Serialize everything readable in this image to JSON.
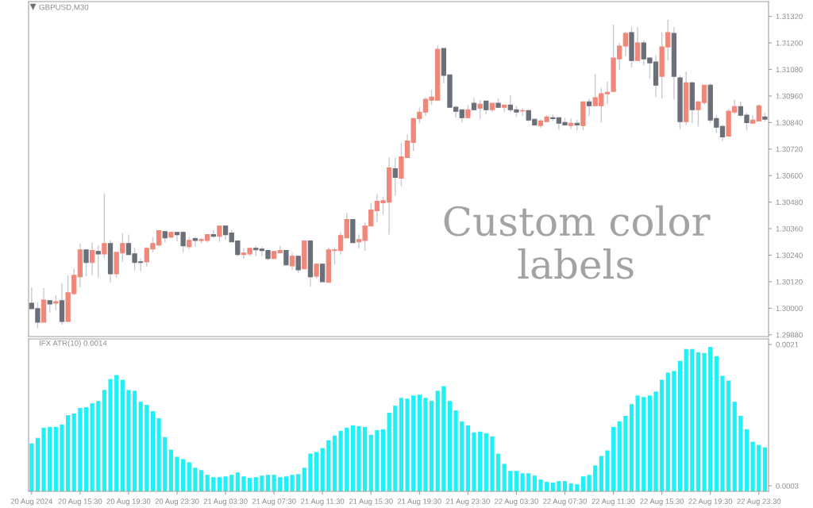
{
  "chart_data": [
    {
      "type": "candlestick",
      "title": "GBPUSD,M30",
      "tick_labels": "y",
      "annotations": [
        "Custom color\nlabels"
      ],
      "ylim": [
        1.29872,
        1.31387
      ],
      "yticks": [
        {
          "value": 1.2988,
          "label": "1.29880"
        },
        {
          "value": 1.3,
          "label": "1.30000"
        },
        {
          "value": 1.3012,
          "label": "1.30120"
        },
        {
          "value": 1.3024,
          "label": "1.30240"
        },
        {
          "value": 1.3036,
          "label": "1.30360"
        },
        {
          "value": 1.3048,
          "label": "1.30480"
        },
        {
          "value": 1.306,
          "label": "1.30600"
        },
        {
          "value": 1.3072,
          "label": "1.30720"
        },
        {
          "value": 1.3084,
          "label": "1.30840"
        },
        {
          "value": 1.3096,
          "label": "1.30960"
        },
        {
          "value": 1.3108,
          "label": "1.31080"
        },
        {
          "value": 1.312,
          "label": "1.31200"
        },
        {
          "value": 1.3132,
          "label": "1.31320"
        }
      ],
      "ohlc": [
        [
          1.30023,
          1.30095,
          1.29998,
          1.29998
        ],
        [
          1.29998,
          1.30027,
          1.29909,
          1.29937
        ],
        [
          1.29937,
          1.30091,
          1.29937,
          1.30037
        ],
        [
          1.30034,
          1.30037,
          1.2998,
          1.30019
        ],
        [
          1.30023,
          1.30059,
          1.29991,
          1.3003
        ],
        [
          1.30034,
          1.30113,
          1.29926,
          1.2994
        ],
        [
          1.2994,
          1.30149,
          1.29937,
          1.3007
        ],
        [
          1.30066,
          1.30178,
          1.30059,
          1.30149
        ],
        [
          1.30142,
          1.30293,
          1.30095,
          1.30264
        ],
        [
          1.30264,
          1.30264,
          1.30145,
          1.30207
        ],
        [
          1.30207,
          1.30297,
          1.30149,
          1.30261
        ],
        [
          1.30257,
          1.30286,
          1.30138,
          1.30246
        ],
        [
          1.30246,
          1.3052,
          1.30228,
          1.30293
        ],
        [
          1.30293,
          1.30307,
          1.30117,
          1.30156
        ],
        [
          1.30156,
          1.30253,
          1.30138,
          1.30253
        ],
        [
          1.3025,
          1.3034,
          1.3021,
          1.30293
        ],
        [
          1.30293,
          1.30333,
          1.30239,
          1.30243
        ],
        [
          1.30246,
          1.30275,
          1.30171,
          1.30207
        ],
        [
          1.3021,
          1.30225,
          1.30167,
          1.30207
        ],
        [
          1.3021,
          1.30275,
          1.30189,
          1.30271
        ],
        [
          1.30268,
          1.30322,
          1.30253,
          1.30293
        ],
        [
          1.30286,
          1.30351,
          1.30279,
          1.30351
        ],
        [
          1.30347,
          1.30347,
          1.30297,
          1.30318
        ],
        [
          1.30322,
          1.30347,
          1.30315,
          1.30343
        ],
        [
          1.30343,
          1.30343,
          1.30304,
          1.30333
        ],
        [
          1.30343,
          1.30351,
          1.30253,
          1.30282
        ],
        [
          1.30279,
          1.30322,
          1.30268,
          1.30307
        ],
        [
          1.30315,
          1.30322,
          1.30279,
          1.30307
        ],
        [
          1.30307,
          1.30318,
          1.30293,
          1.30311
        ],
        [
          1.30307,
          1.30336,
          1.30297,
          1.30333
        ],
        [
          1.30333,
          1.30354,
          1.30318,
          1.30325
        ],
        [
          1.30325,
          1.30372,
          1.303,
          1.30372
        ],
        [
          1.30372,
          1.30376,
          1.30311,
          1.30333
        ],
        [
          1.3034,
          1.30354,
          1.303,
          1.303
        ],
        [
          1.30304,
          1.30304,
          1.30235,
          1.30243
        ],
        [
          1.30243,
          1.30271,
          1.30225,
          1.3025
        ],
        [
          1.30246,
          1.30275,
          1.30235,
          1.30271
        ],
        [
          1.30271,
          1.30282,
          1.30235,
          1.30264
        ],
        [
          1.30268,
          1.30279,
          1.30235,
          1.30261
        ],
        [
          1.30261,
          1.30261,
          1.30217,
          1.30225
        ],
        [
          1.30225,
          1.30261,
          1.30225,
          1.30257
        ],
        [
          1.30251,
          1.30282,
          1.30247,
          1.30261
        ],
        [
          1.30261,
          1.30264,
          1.30192,
          1.30196
        ],
        [
          1.30192,
          1.3025,
          1.30174,
          1.30235
        ],
        [
          1.30235,
          1.30235,
          1.3016,
          1.30174
        ],
        [
          1.30178,
          1.30304,
          1.30178,
          1.30304
        ],
        [
          1.30304,
          1.30307,
          1.30099,
          1.30142
        ],
        [
          1.30145,
          1.30203,
          1.30135,
          1.30199
        ],
        [
          1.30199,
          1.30203,
          1.3012,
          1.3012
        ],
        [
          1.30117,
          1.30275,
          1.30117,
          1.30264
        ],
        [
          1.30261,
          1.30275,
          1.30199,
          1.30264
        ],
        [
          1.30261,
          1.30343,
          1.30243,
          1.30329
        ],
        [
          1.30318,
          1.3043,
          1.30318,
          1.30401
        ],
        [
          1.30401,
          1.30401,
          1.30297,
          1.30297
        ],
        [
          1.303,
          1.30333,
          1.30271,
          1.30311
        ],
        [
          1.30307,
          1.30387,
          1.30261,
          1.30372
        ],
        [
          1.30372,
          1.30477,
          1.30372,
          1.30444
        ],
        [
          1.30441,
          1.30516,
          1.3039,
          1.30484
        ],
        [
          1.30477,
          1.30505,
          1.30423,
          1.30487
        ],
        [
          1.3048,
          1.30682,
          1.30333,
          1.30635
        ],
        [
          1.30631,
          1.30682,
          1.30509,
          1.30592
        ],
        [
          1.30588,
          1.30747,
          1.30552,
          1.30685
        ],
        [
          1.30682,
          1.30786,
          1.30682,
          1.30757
        ],
        [
          1.3075,
          1.30858,
          1.30711,
          1.30858
        ],
        [
          1.30858,
          1.30909,
          1.30837,
          1.30887
        ],
        [
          1.30887,
          1.30955,
          1.30869,
          1.30945
        ],
        [
          1.30941,
          1.30988,
          1.30919,
          1.30955
        ],
        [
          1.30941,
          1.31189,
          1.30941,
          1.31171
        ],
        [
          1.31175,
          1.31175,
          1.31017,
          1.31053
        ],
        [
          1.31056,
          1.31056,
          1.30909,
          1.30909
        ],
        [
          1.30909,
          1.30916,
          1.30862,
          1.30891
        ],
        [
          1.30898,
          1.30898,
          1.3084,
          1.30862
        ],
        [
          1.30862,
          1.30919,
          1.30858,
          1.30898
        ],
        [
          1.30927,
          1.30952,
          1.30898,
          1.30898
        ],
        [
          1.30905,
          1.30941,
          1.30858,
          1.30923
        ],
        [
          1.30937,
          1.30937,
          1.30876,
          1.30898
        ],
        [
          1.30898,
          1.30927,
          1.30887,
          1.30927
        ],
        [
          1.30927,
          1.30948,
          1.30905,
          1.30909
        ],
        [
          1.30909,
          1.30919,
          1.30887,
          1.30919
        ],
        [
          1.30919,
          1.30963,
          1.30887,
          1.30898
        ],
        [
          1.30898,
          1.30916,
          1.30865,
          1.30887
        ],
        [
          1.30892,
          1.30905,
          1.3087,
          1.30894
        ],
        [
          1.30894,
          1.30894,
          1.30844,
          1.30851
        ],
        [
          1.30855,
          1.30858,
          1.30826,
          1.30829
        ],
        [
          1.30826,
          1.30855,
          1.30815,
          1.30847
        ],
        [
          1.30844,
          1.30873,
          1.30844,
          1.30865
        ],
        [
          1.30862,
          1.30876,
          1.30847,
          1.30858
        ],
        [
          1.30862,
          1.30862,
          1.30808,
          1.30837
        ],
        [
          1.3084,
          1.30862,
          1.30829,
          1.30829
        ],
        [
          1.30826,
          1.30858,
          1.30811,
          1.30837
        ],
        [
          1.30837,
          1.30851,
          1.30804,
          1.30829
        ],
        [
          1.30826,
          1.30934,
          1.30804,
          1.30934
        ],
        [
          1.30934,
          1.30948,
          1.30869,
          1.30916
        ],
        [
          1.30916,
          1.3106,
          1.30916,
          1.30952
        ],
        [
          1.30916,
          1.30995,
          1.3084,
          1.3097
        ],
        [
          1.3097,
          1.31024,
          1.30923,
          1.30977
        ],
        [
          1.30981,
          1.31283,
          1.30981,
          1.31132
        ],
        [
          1.31128,
          1.312,
          1.31078,
          1.31186
        ],
        [
          1.31186,
          1.31251,
          1.31139,
          1.31243
        ],
        [
          1.31247,
          1.31272,
          1.31089,
          1.31121
        ],
        [
          1.31121,
          1.31272,
          1.31121,
          1.312
        ],
        [
          1.312,
          1.31211,
          1.31099,
          1.31128
        ],
        [
          1.31132,
          1.31135,
          1.31038,
          1.3111
        ],
        [
          1.31114,
          1.31146,
          1.30955,
          1.31009
        ],
        [
          1.31049,
          1.31247,
          1.30948,
          1.31182
        ],
        [
          1.31182,
          1.31304,
          1.31121,
          1.31247
        ],
        [
          1.31243,
          1.31272,
          1.30944,
          1.31049
        ],
        [
          1.31042,
          1.31053,
          1.30808,
          1.30844
        ],
        [
          1.30844,
          1.31071,
          1.30829,
          1.3102
        ],
        [
          1.3102,
          1.31024,
          1.30837,
          1.30898
        ],
        [
          1.30898,
          1.30937,
          1.30822,
          1.30934
        ],
        [
          1.3093,
          1.31009,
          1.30919,
          1.31009
        ],
        [
          1.31009,
          1.31017,
          1.30837,
          1.30851
        ],
        [
          1.30858,
          1.30873,
          1.30793,
          1.30819
        ],
        [
          1.30822,
          1.30829,
          1.30757,
          1.30775
        ],
        [
          1.30779,
          1.30901,
          1.30775,
          1.30891
        ],
        [
          1.30887,
          1.30944,
          1.30876,
          1.30912
        ],
        [
          1.30912,
          1.30934,
          1.30865,
          1.30873
        ],
        [
          1.30873,
          1.30883,
          1.30804,
          1.3084
        ],
        [
          1.30837,
          1.30873,
          1.30837,
          1.30851
        ],
        [
          1.30847,
          1.30923,
          1.30847,
          1.30916
        ],
        [
          1.30865,
          1.30883,
          1.30844,
          1.30855
        ]
      ],
      "colors": [
        "#6b6f78",
        "#6b6f78",
        "#f0887a",
        "#6b6f78",
        "#f0887a",
        "#6b6f78",
        "#f0887a",
        "#f0887a",
        "#f0887a",
        "#6b6f78",
        "#f0887a",
        "#6b6f78",
        "#f0887a",
        "#6b6f78",
        "#f0887a",
        "#f0887a",
        "#6b6f78",
        "#6b6f78",
        "#6b6f78",
        "#f0887a",
        "#f0887a",
        "#f0887a",
        "#6b6f78",
        "#f0887a",
        "#6b6f78",
        "#6b6f78",
        "#f0887a",
        "#6b6f78",
        "#f0887a",
        "#f0887a",
        "#6b6f78",
        "#f0887a",
        "#6b6f78",
        "#6b6f78",
        "#6b6f78",
        "#f0887a",
        "#f0887a",
        "#6b6f78",
        "#6b6f78",
        "#6b6f78",
        "#f0887a",
        "#f0887a",
        "#6b6f78",
        "#f0887a",
        "#6b6f78",
        "#f0887a",
        "#6b6f78",
        "#f0887a",
        "#6b6f78",
        "#f0887a",
        "#f0887a",
        "#f0887a",
        "#f0887a",
        "#6b6f78",
        "#f0887a",
        "#f0887a",
        "#f0887a",
        "#f0887a",
        "#f0887a",
        "#f0887a",
        "#6b6f78",
        "#f0887a",
        "#f0887a",
        "#f0887a",
        "#f0887a",
        "#f0887a",
        "#f0887a",
        "#f0887a",
        "#6b6f78",
        "#6b6f78",
        "#6b6f78",
        "#6b6f78",
        "#f0887a",
        "#6b6f78",
        "#f0887a",
        "#6b6f78",
        "#f0887a",
        "#6b6f78",
        "#f0887a",
        "#6b6f78",
        "#6b6f78",
        "#f0887a",
        "#6b6f78",
        "#6b6f78",
        "#f0887a",
        "#f0887a",
        "#6b6f78",
        "#6b6f78",
        "#6b6f78",
        "#f0887a",
        "#6b6f78",
        "#f0887a",
        "#6b6f78",
        "#f0887a",
        "#f0887a",
        "#f0887a",
        "#f0887a",
        "#f0887a",
        "#f0887a",
        "#6b6f78",
        "#f0887a",
        "#6b6f78",
        "#6b6f78",
        "#6b6f78",
        "#f0887a",
        "#f0887a",
        "#6b6f78",
        "#6b6f78",
        "#f0887a",
        "#6b6f78",
        "#f0887a",
        "#f0887a",
        "#6b6f78",
        "#6b6f78",
        "#6b6f78",
        "#f0887a",
        "#f0887a",
        "#6b6f78",
        "#6b6f78",
        "#f0887a",
        "#f0887a",
        "#6b6f78"
      ]
    },
    {
      "type": "bar",
      "title": "IFX ATR(10) 0.0014",
      "color": "#1ef0f5",
      "categories": [
        "20 Aug 2024",
        null,
        null,
        null,
        null,
        null,
        null,
        null,
        "20 Aug 15:30",
        null,
        null,
        null,
        null,
        null,
        null,
        null,
        "20 Aug 19:30",
        null,
        null,
        null,
        null,
        null,
        null,
        null,
        "20 Aug 23:30",
        null,
        null,
        null,
        null,
        null,
        null,
        null,
        "21 Aug 03:30",
        null,
        null,
        null,
        null,
        null,
        null,
        null,
        "21 Aug 07:30",
        null,
        null,
        null,
        null,
        null,
        null,
        null,
        "21 Aug 11:30",
        null,
        null,
        null,
        null,
        null,
        null,
        null,
        "21 Aug 15:30",
        null,
        null,
        null,
        null,
        null,
        null,
        null,
        "21 Aug 19:30",
        null,
        null,
        null,
        null,
        null,
        null,
        null,
        "21 Aug 23:30",
        null,
        null,
        null,
        null,
        null,
        null,
        null,
        "22 Aug 03:30",
        null,
        null,
        null,
        null,
        null,
        null,
        null,
        "22 Aug 07:30",
        null,
        null,
        null,
        null,
        null,
        null,
        null,
        "22 Aug 11:30",
        null,
        null,
        null,
        null,
        null,
        null,
        null,
        "22 Aug 15:30",
        null,
        null,
        null,
        null,
        null,
        null,
        null,
        "22 Aug 19:30",
        null,
        null,
        null,
        null,
        null,
        null,
        null,
        "22 Aug 23:30",
        null
      ],
      "ylim": [
        0.00023,
        0.00217
      ],
      "yticks": [
        0.0003,
        0.0021
      ],
      "values": [
        0.00084,
        0.00091,
        0.00104,
        0.00105,
        0.00105,
        0.00108,
        0.0012,
        0.00122,
        0.00129,
        0.0013,
        0.00135,
        0.00138,
        0.00152,
        0.00166,
        0.00171,
        0.00165,
        0.00152,
        0.00151,
        0.00137,
        0.00133,
        0.00125,
        0.00116,
        0.00092,
        0.00076,
        0.00067,
        0.00064,
        0.0006,
        0.00053,
        0.0005,
        0.00044,
        0.00041,
        0.00041,
        0.00042,
        0.00044,
        0.00047,
        0.00042,
        0.0004,
        0.00041,
        0.00043,
        0.00044,
        0.00044,
        0.00041,
        0.00042,
        0.00044,
        0.00045,
        0.00053,
        0.00071,
        0.00073,
        0.00078,
        0.00088,
        0.00094,
        0.001,
        0.00104,
        0.00107,
        0.00106,
        0.00105,
        0.00095,
        0.00101,
        0.00102,
        0.00123,
        0.00132,
        0.00142,
        0.00141,
        0.00145,
        0.00146,
        0.00142,
        0.00138,
        0.00151,
        0.00157,
        0.00138,
        0.00126,
        0.00112,
        0.00107,
        0.00098,
        0.00099,
        0.00097,
        0.00093,
        0.00071,
        0.00058,
        0.00049,
        0.00049,
        0.00046,
        0.00046,
        0.00043,
        0.00038,
        0.00035,
        0.00034,
        0.00036,
        0.00036,
        0.00033,
        0.00032,
        0.00042,
        0.00044,
        0.00056,
        0.00068,
        0.00075,
        0.00105,
        0.00112,
        0.00119,
        0.00134,
        0.00145,
        0.00143,
        0.00145,
        0.0015,
        0.00165,
        0.00174,
        0.00176,
        0.00189,
        0.00204,
        0.00204,
        0.002,
        0.00199,
        0.00207,
        0.00195,
        0.0017,
        0.00164,
        0.00137,
        0.00119,
        0.00102,
        0.00086,
        0.00082,
        0.00079
      ]
    }
  ]
}
